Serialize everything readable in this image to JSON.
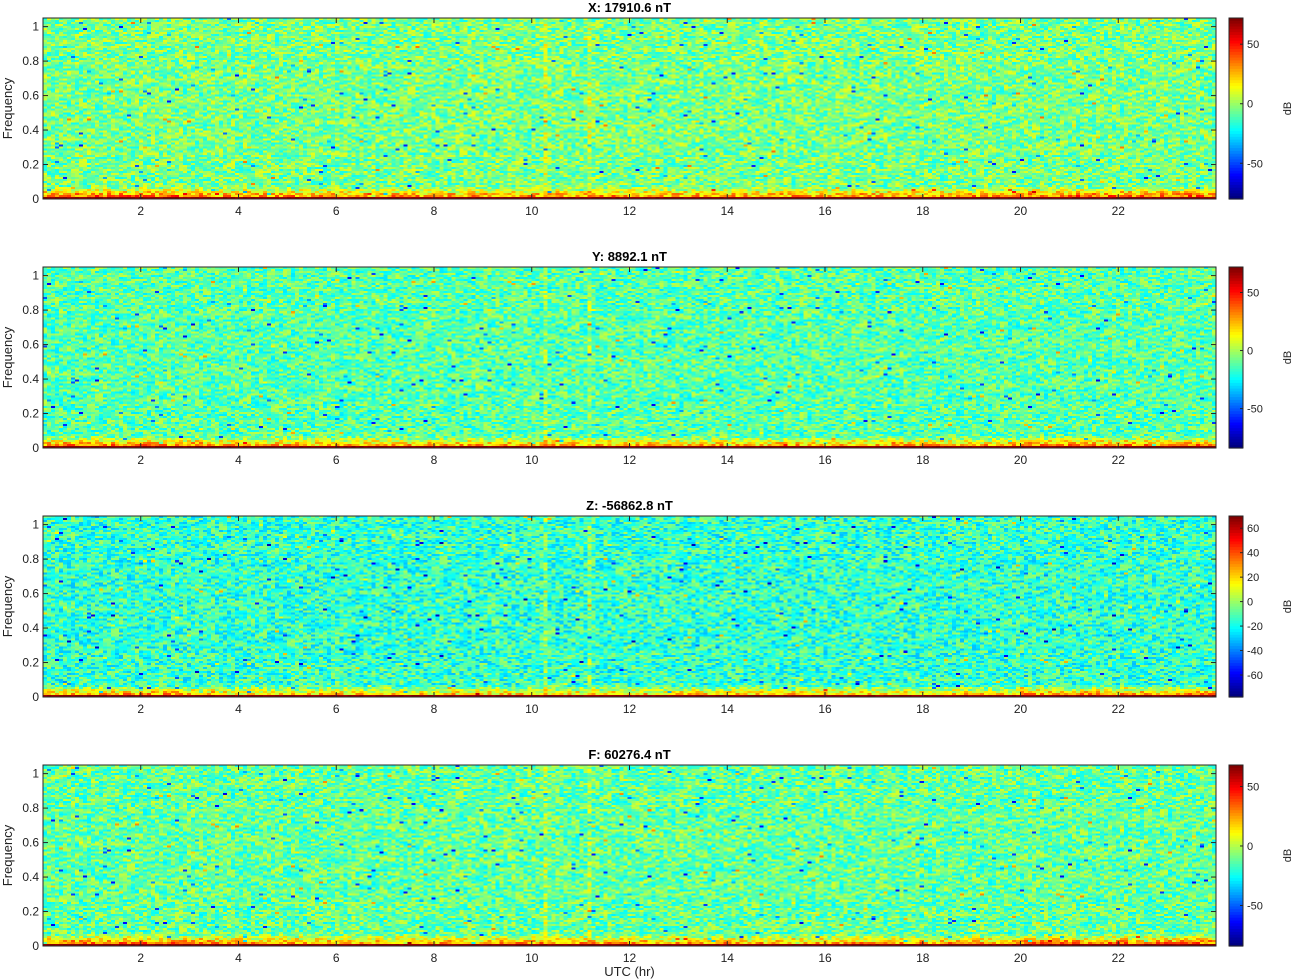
{
  "figure": {
    "xlabel": "UTC (hr)",
    "colormap": "jet"
  },
  "chart_data": [
    {
      "type": "heatmap",
      "title": "X: 17910.6 nT",
      "xlabel": "UTC (hr)",
      "ylabel": "Frequency",
      "xlim": [
        0,
        24
      ],
      "ylim": [
        0,
        1.05
      ],
      "xticks": [
        "2",
        "4",
        "6",
        "8",
        "10",
        "12",
        "14",
        "16",
        "18",
        "20",
        "22"
      ],
      "yticks": [
        "0",
        "0.2",
        "0.4",
        "0.6",
        "0.8",
        "1"
      ],
      "colorbar": {
        "label": "dB",
        "range": [
          -80,
          72
        ],
        "ticks": [
          "50",
          "0",
          "-50"
        ]
      },
      "background_level_db": -5,
      "low_frequency_band_db": 40,
      "dc_level_db": 72
    },
    {
      "type": "heatmap",
      "title": "Y: 8892.1 nT",
      "xlabel": "UTC (hr)",
      "ylabel": "Frequency",
      "xlim": [
        0,
        24
      ],
      "ylim": [
        0,
        1.05
      ],
      "xticks": [
        "2",
        "4",
        "6",
        "8",
        "10",
        "12",
        "14",
        "16",
        "18",
        "20",
        "22"
      ],
      "yticks": [
        "0",
        "0.2",
        "0.4",
        "0.6",
        "0.8",
        "1"
      ],
      "colorbar": {
        "label": "dB",
        "range": [
          -84,
          72
        ],
        "ticks": [
          "50",
          "0",
          "-50"
        ]
      },
      "background_level_db": -12,
      "low_frequency_band_db": 35,
      "dc_level_db": 72
    },
    {
      "type": "heatmap",
      "title": "Z: -56862.8 nT",
      "xlabel": "UTC (hr)",
      "ylabel": "Frequency",
      "xlim": [
        0,
        24
      ],
      "ylim": [
        0,
        1.05
      ],
      "xticks": [
        "2",
        "4",
        "6",
        "8",
        "10",
        "12",
        "14",
        "16",
        "18",
        "20",
        "22"
      ],
      "yticks": [
        "0",
        "0.2",
        "0.4",
        "0.6",
        "0.8",
        "1"
      ],
      "colorbar": {
        "label": "dB",
        "range": [
          -78,
          70
        ],
        "ticks": [
          "60",
          "40",
          "20",
          "0",
          "-20",
          "-40",
          "-60"
        ]
      },
      "background_level_db": -15,
      "low_frequency_band_db": 30,
      "dc_level_db": 70
    },
    {
      "type": "heatmap",
      "title": "F: 60276.4 nT",
      "xlabel": "UTC (hr)",
      "ylabel": "Frequency",
      "xlim": [
        0,
        24
      ],
      "ylim": [
        0,
        1.05
      ],
      "xticks": [
        "2",
        "4",
        "6",
        "8",
        "10",
        "12",
        "14",
        "16",
        "18",
        "20",
        "22"
      ],
      "yticks": [
        "0",
        "0.2",
        "0.4",
        "0.6",
        "0.8",
        "1"
      ],
      "colorbar": {
        "label": "dB",
        "range": [
          -84,
          68
        ],
        "ticks": [
          "50",
          "0",
          "-50"
        ]
      },
      "background_level_db": -12,
      "low_frequency_band_db": 35,
      "dc_level_db": 68
    }
  ]
}
